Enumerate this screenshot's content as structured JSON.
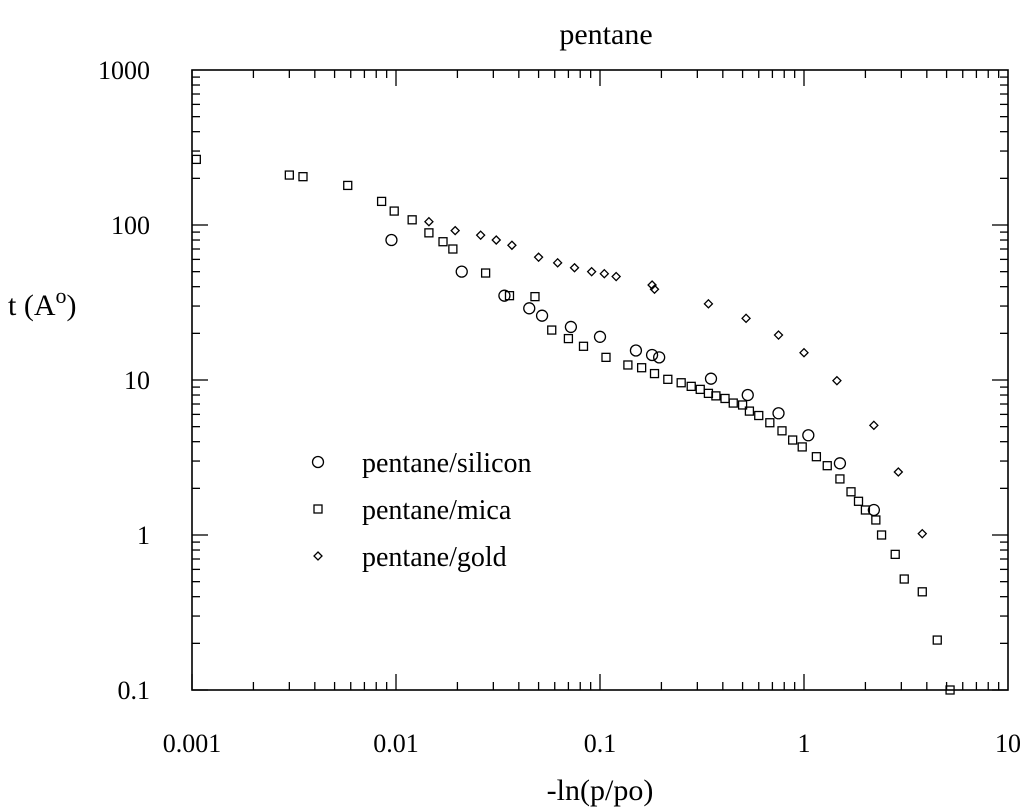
{
  "chart_data": {
    "type": "scatter",
    "title": "pentane",
    "xlabel": "-ln(p/po)",
    "ylabel": "t (A",
    "ylabel_sup": "o",
    "ylabel_close": ")",
    "x_scale": "log",
    "y_scale": "log",
    "xlim": [
      0.001,
      10
    ],
    "ylim": [
      0.1,
      1000
    ],
    "x_ticks": [
      0.001,
      0.01,
      0.1,
      1,
      10
    ],
    "x_tick_labels": [
      "0.001",
      "0.01",
      "0.1",
      "1",
      "10"
    ],
    "y_ticks": [
      0.1,
      1,
      10,
      100,
      1000
    ],
    "y_tick_labels": [
      "0.1",
      "1",
      "10",
      "100",
      "1000"
    ],
    "grid": false,
    "legend_position": "lower-left",
    "series": [
      {
        "name": "pentane/silicon",
        "marker": "circle",
        "points": [
          [
            0.0095,
            80
          ],
          [
            0.021,
            50
          ],
          [
            0.034,
            35
          ],
          [
            0.045,
            29
          ],
          [
            0.052,
            26
          ],
          [
            0.072,
            22
          ],
          [
            0.1,
            19
          ],
          [
            0.15,
            15.5
          ],
          [
            0.18,
            14.5
          ],
          [
            0.195,
            14
          ],
          [
            0.35,
            10.2
          ],
          [
            0.53,
            8
          ],
          [
            0.75,
            6.1
          ],
          [
            1.05,
            4.4
          ],
          [
            1.5,
            2.9
          ],
          [
            2.2,
            1.45
          ]
        ]
      },
      {
        "name": "pentane/mica",
        "marker": "square",
        "points": [
          [
            0.00105,
            265
          ],
          [
            0.003,
            210
          ],
          [
            0.0035,
            205
          ],
          [
            0.0058,
            180
          ],
          [
            0.0085,
            142
          ],
          [
            0.0098,
            123
          ],
          [
            0.012,
            108
          ],
          [
            0.0145,
            89
          ],
          [
            0.017,
            78
          ],
          [
            0.019,
            70
          ],
          [
            0.0275,
            49
          ],
          [
            0.036,
            35
          ],
          [
            0.048,
            34.5
          ],
          [
            0.058,
            21
          ],
          [
            0.07,
            18.5
          ],
          [
            0.083,
            16.5
          ],
          [
            0.107,
            14
          ],
          [
            0.137,
            12.5
          ],
          [
            0.16,
            12
          ],
          [
            0.185,
            11
          ],
          [
            0.215,
            10.1
          ],
          [
            0.25,
            9.6
          ],
          [
            0.28,
            9.1
          ],
          [
            0.31,
            8.7
          ],
          [
            0.34,
            8.2
          ],
          [
            0.37,
            7.9
          ],
          [
            0.41,
            7.6
          ],
          [
            0.45,
            7.1
          ],
          [
            0.5,
            6.9
          ],
          [
            0.54,
            6.3
          ],
          [
            0.6,
            5.9
          ],
          [
            0.68,
            5.3
          ],
          [
            0.78,
            4.7
          ],
          [
            0.88,
            4.1
          ],
          [
            0.98,
            3.7
          ],
          [
            1.15,
            3.2
          ],
          [
            1.3,
            2.8
          ],
          [
            1.5,
            2.3
          ],
          [
            1.7,
            1.9
          ],
          [
            1.85,
            1.65
          ],
          [
            2.0,
            1.45
          ],
          [
            2.25,
            1.25
          ],
          [
            2.4,
            1.0
          ],
          [
            2.8,
            0.75
          ],
          [
            3.1,
            0.52
          ],
          [
            3.8,
            0.43
          ],
          [
            4.5,
            0.21
          ],
          [
            5.2,
            0.1
          ]
        ]
      },
      {
        "name": "pentane/gold",
        "marker": "diamond",
        "points": [
          [
            0.0145,
            105
          ],
          [
            0.0195,
            92
          ],
          [
            0.026,
            86
          ],
          [
            0.031,
            80
          ],
          [
            0.037,
            74
          ],
          [
            0.05,
            62
          ],
          [
            0.062,
            57
          ],
          [
            0.075,
            53
          ],
          [
            0.091,
            50
          ],
          [
            0.105,
            48.5
          ],
          [
            0.12,
            46.5
          ],
          [
            0.18,
            41
          ],
          [
            0.185,
            38.5
          ],
          [
            0.34,
            31
          ],
          [
            0.52,
            25
          ],
          [
            0.75,
            19.5
          ],
          [
            1.0,
            15
          ],
          [
            1.45,
            9.9
          ],
          [
            2.2,
            5.1
          ],
          [
            2.9,
            2.55
          ],
          [
            3.8,
            1.02
          ]
        ]
      }
    ]
  }
}
